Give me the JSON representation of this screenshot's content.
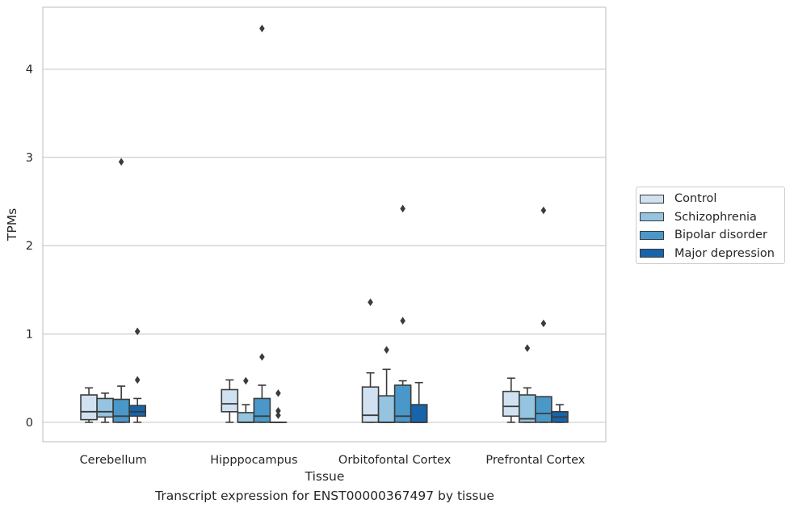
{
  "chart_data": {
    "type": "box",
    "caption": "Transcript expression for ENST00000367497 by tissue",
    "xlabel": "Tissue",
    "ylabel": "TPMs",
    "ylim": [
      -0.22,
      4.7
    ],
    "yticks": [
      0,
      1,
      2,
      3,
      4
    ],
    "grid": "horizontal",
    "legend_position": "right",
    "categories": [
      "Cerebellum",
      "Hipppocampus",
      "Orbitofontal Cortex",
      "Prefrontal Cortex"
    ],
    "series": [
      {
        "name": "Control",
        "color": "#d0e1f2",
        "boxes": [
          {
            "whislo": 0.0,
            "q1": 0.03,
            "med": 0.12,
            "q3": 0.31,
            "whishi": 0.39,
            "fliers": []
          },
          {
            "whislo": 0.0,
            "q1": 0.12,
            "med": 0.21,
            "q3": 0.37,
            "whishi": 0.48,
            "fliers": []
          },
          {
            "whislo": 0.0,
            "q1": 0.0,
            "med": 0.08,
            "q3": 0.4,
            "whishi": 0.56,
            "fliers": [
              1.36
            ]
          },
          {
            "whislo": 0.0,
            "q1": 0.07,
            "med": 0.18,
            "q3": 0.35,
            "whishi": 0.5,
            "fliers": []
          }
        ]
      },
      {
        "name": "Schizophrenia",
        "color": "#94c4df",
        "boxes": [
          {
            "whislo": 0.0,
            "q1": 0.06,
            "med": 0.12,
            "q3": 0.27,
            "whishi": 0.33,
            "fliers": []
          },
          {
            "whislo": 0.0,
            "q1": 0.0,
            "med": 0.0,
            "q3": 0.11,
            "whishi": 0.2,
            "fliers": [
              0.47
            ]
          },
          {
            "whislo": 0.0,
            "q1": 0.0,
            "med": 0.0,
            "q3": 0.3,
            "whishi": 0.6,
            "fliers": [
              0.82
            ]
          },
          {
            "whislo": 0.0,
            "q1": 0.0,
            "med": 0.04,
            "q3": 0.31,
            "whishi": 0.39,
            "fliers": [
              0.84
            ]
          }
        ]
      },
      {
        "name": "Bipolar disorder",
        "color": "#4a98c9",
        "boxes": [
          {
            "whislo": 0.0,
            "q1": 0.0,
            "med": 0.07,
            "q3": 0.26,
            "whishi": 0.41,
            "fliers": [
              2.95
            ]
          },
          {
            "whislo": 0.0,
            "q1": 0.0,
            "med": 0.07,
            "q3": 0.27,
            "whishi": 0.42,
            "fliers": [
              4.46,
              0.74
            ]
          },
          {
            "whislo": 0.0,
            "q1": 0.0,
            "med": 0.07,
            "q3": 0.42,
            "whishi": 0.47,
            "fliers": [
              2.42,
              1.15
            ]
          },
          {
            "whislo": 0.0,
            "q1": 0.0,
            "med": 0.1,
            "q3": 0.29,
            "whishi": 0.29,
            "fliers": [
              2.4,
              1.12
            ]
          }
        ]
      },
      {
        "name": "Major depression",
        "color": "#1764ab",
        "boxes": [
          {
            "whislo": 0.0,
            "q1": 0.07,
            "med": 0.12,
            "q3": 0.19,
            "whishi": 0.27,
            "fliers": [
              1.03,
              0.48
            ]
          },
          {
            "whislo": 0.0,
            "q1": 0.0,
            "med": 0.0,
            "q3": 0.0,
            "whishi": 0.0,
            "fliers": [
              0.33,
              0.13,
              0.08
            ]
          },
          {
            "whislo": 0.0,
            "q1": 0.0,
            "med": 0.0,
            "q3": 0.2,
            "whishi": 0.45,
            "fliers": []
          },
          {
            "whislo": 0.0,
            "q1": 0.0,
            "med": 0.06,
            "q3": 0.12,
            "whishi": 0.2,
            "fliers": []
          }
        ]
      }
    ]
  }
}
